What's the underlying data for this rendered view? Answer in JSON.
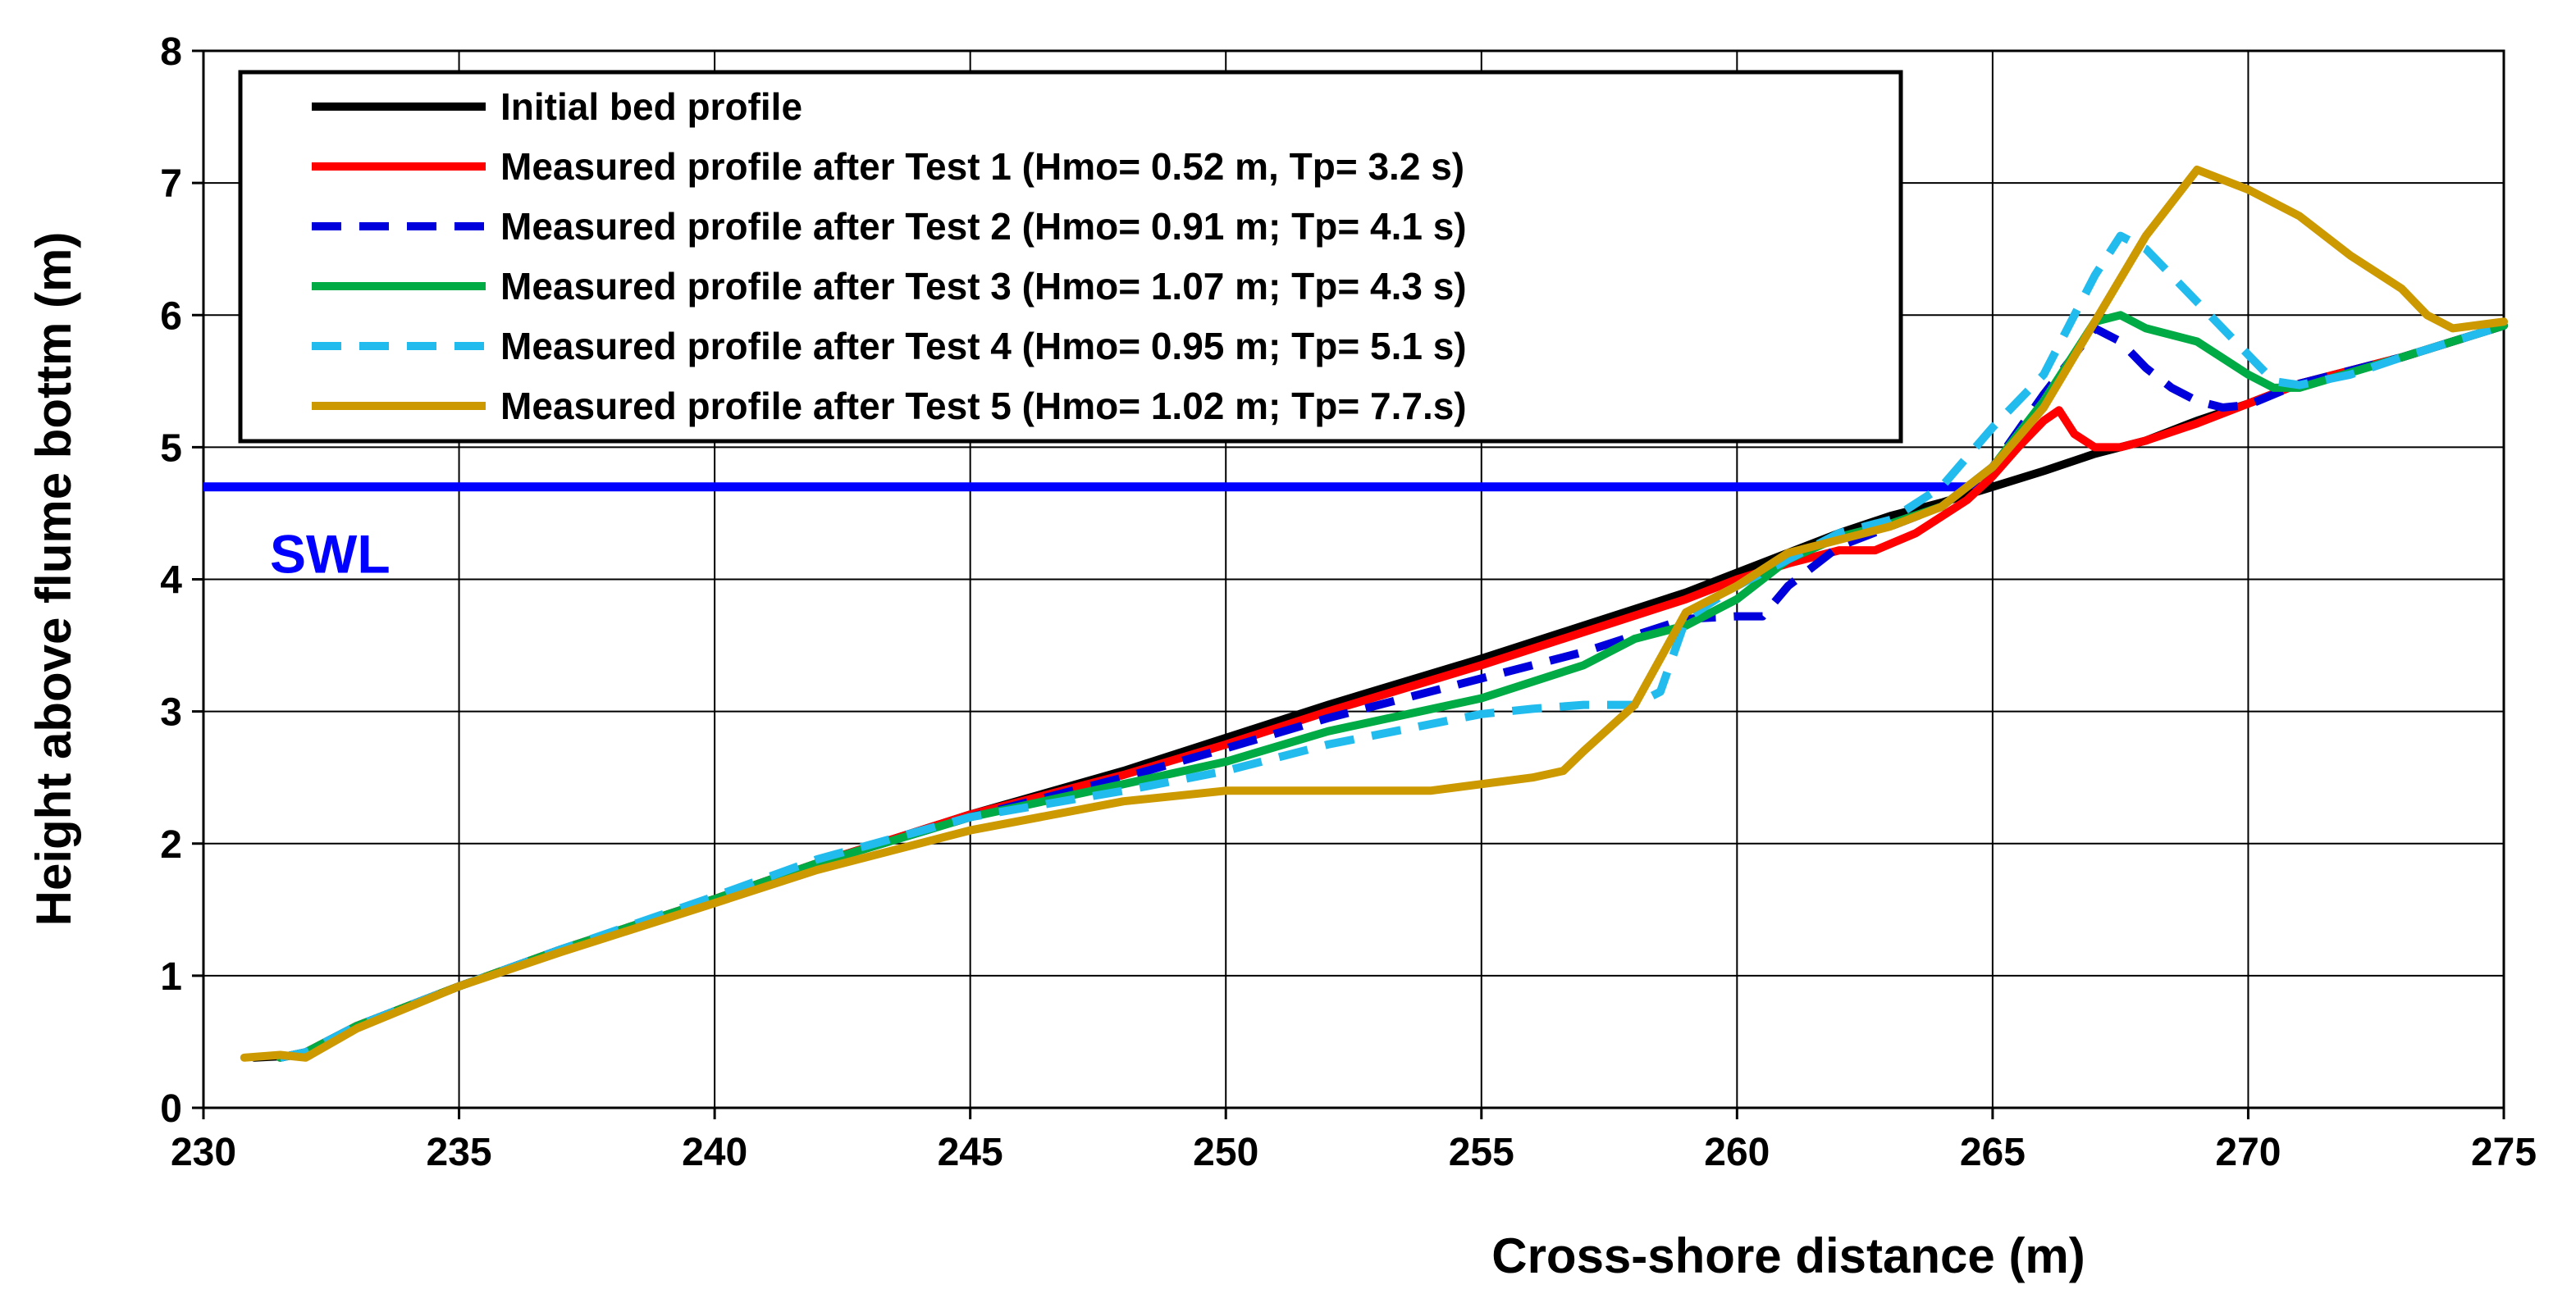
{
  "chart_data": {
    "type": "line",
    "xlabel": "Cross-shore distance (m)",
    "ylabel": "Height above flume bottm (m)",
    "xlim": [
      230,
      275
    ],
    "ylim": [
      0,
      8
    ],
    "xticks": [
      "230",
      "235",
      "240",
      "245",
      "250",
      "255",
      "260",
      "265",
      "270",
      "275"
    ],
    "yticks": [
      "0",
      "1",
      "2",
      "3",
      "4",
      "5",
      "6",
      "7",
      "8"
    ],
    "grid": true,
    "legend_position": "top-left",
    "swl": {
      "label": "SWL",
      "y": 4.7,
      "color": "#0000ff"
    },
    "series": [
      {
        "name": "Initial bed profile",
        "color": "#000000",
        "dash": false,
        "x": [
          231,
          232,
          233,
          235,
          237,
          240,
          242,
          245,
          248,
          250,
          252,
          255,
          257,
          259,
          260,
          261,
          262,
          263,
          264,
          265,
          266,
          267,
          268,
          269,
          270,
          271,
          273,
          275
        ],
        "y": [
          0.38,
          0.4,
          0.62,
          0.92,
          1.2,
          1.58,
          1.85,
          2.22,
          2.55,
          2.8,
          3.05,
          3.4,
          3.65,
          3.9,
          4.05,
          4.2,
          4.35,
          4.48,
          4.58,
          4.7,
          4.82,
          4.95,
          5.05,
          5.2,
          5.33,
          5.48,
          5.68,
          5.92
        ]
      },
      {
        "name": "Measured profile after Test 1 (Hmo= 0.52 m, Tp= 3.2 s)",
        "color": "#ff0000",
        "dash": false,
        "x": [
          231.5,
          232,
          233,
          235,
          237,
          240,
          242,
          245,
          248,
          250,
          252,
          255,
          257,
          259,
          260,
          261,
          262,
          262.7,
          263.5,
          264.5,
          265,
          265.5,
          266,
          266.3,
          266.6,
          267,
          267.5,
          268,
          269,
          270,
          271,
          273,
          275
        ],
        "y": [
          0.38,
          0.42,
          0.62,
          0.92,
          1.2,
          1.58,
          1.85,
          2.22,
          2.52,
          2.75,
          3.0,
          3.35,
          3.6,
          3.85,
          4.0,
          4.12,
          4.22,
          4.22,
          4.35,
          4.6,
          4.78,
          5.0,
          5.2,
          5.28,
          5.1,
          5.0,
          5.0,
          5.05,
          5.18,
          5.33,
          5.48,
          5.68,
          5.92
        ]
      },
      {
        "name": "Measured profile after Test 2 (Hmo= 0.91 m; Tp= 4.1 s)",
        "color": "#0000dd",
        "dash": true,
        "x": [
          231.5,
          232,
          233,
          235,
          237,
          240,
          242,
          245,
          248,
          250,
          252,
          255,
          257,
          259,
          260,
          260.5,
          261,
          262,
          263,
          264,
          265,
          266,
          267,
          267.5,
          268,
          268.5,
          269,
          269.5,
          270,
          271,
          273,
          275
        ],
        "y": [
          0.38,
          0.42,
          0.62,
          0.92,
          1.2,
          1.58,
          1.85,
          2.2,
          2.5,
          2.72,
          2.95,
          3.25,
          3.45,
          3.7,
          3.72,
          3.72,
          3.95,
          4.25,
          4.4,
          4.55,
          4.85,
          5.4,
          5.9,
          5.8,
          5.6,
          5.45,
          5.35,
          5.3,
          5.32,
          5.48,
          5.68,
          5.92
        ]
      },
      {
        "name": "Measured profile after Test 3 (Hmo= 1.07 m; Tp= 4.3 s)",
        "color": "#00aa44",
        "dash": false,
        "x": [
          231.5,
          232,
          233,
          235,
          237,
          240,
          242,
          245,
          248,
          250,
          252,
          255,
          257,
          258,
          259,
          260,
          261,
          262,
          263,
          264,
          265,
          266,
          267,
          267.5,
          268,
          269,
          270,
          270.5,
          271,
          273,
          275
        ],
        "y": [
          0.38,
          0.42,
          0.62,
          0.92,
          1.2,
          1.58,
          1.85,
          2.2,
          2.45,
          2.62,
          2.85,
          3.1,
          3.35,
          3.55,
          3.65,
          3.85,
          4.15,
          4.32,
          4.42,
          4.55,
          4.85,
          5.35,
          5.95,
          6.0,
          5.9,
          5.8,
          5.55,
          5.45,
          5.45,
          5.68,
          5.92
        ]
      },
      {
        "name": "Measured profile after Test 4 (Hmo= 0.95 m; Tp= 5.1 s)",
        "color": "#22bbee",
        "dash": true,
        "x": [
          231.5,
          232,
          233,
          235,
          237,
          240,
          242,
          245,
          248,
          250,
          252,
          255,
          256,
          257,
          258,
          258.5,
          259,
          260,
          261,
          262,
          263,
          264,
          265,
          266,
          267,
          267.5,
          268,
          269,
          270,
          270.5,
          271,
          272,
          273,
          275
        ],
        "y": [
          0.38,
          0.42,
          0.62,
          0.92,
          1.2,
          1.6,
          1.88,
          2.2,
          2.4,
          2.55,
          2.75,
          2.98,
          3.02,
          3.05,
          3.05,
          3.15,
          3.7,
          3.95,
          4.15,
          4.35,
          4.45,
          4.7,
          5.15,
          5.55,
          6.3,
          6.6,
          6.5,
          6.1,
          5.7,
          5.5,
          5.47,
          5.55,
          5.68,
          5.92
        ]
      },
      {
        "name": "Measured profile after Test 5 (Hmo= 1.02 m; Tp= 7.7.s)",
        "color": "#cc9900",
        "dash": false,
        "x": [
          230.8,
          231.5,
          232,
          233,
          235,
          237,
          240,
          242,
          245,
          248,
          250,
          252,
          254,
          256,
          256.6,
          257,
          258,
          259,
          260,
          261,
          262,
          263,
          264,
          265,
          266,
          267,
          268,
          269,
          270,
          271,
          272,
          273,
          273.5,
          274,
          275
        ],
        "y": [
          0.38,
          0.4,
          0.38,
          0.6,
          0.92,
          1.18,
          1.55,
          1.8,
          2.1,
          2.32,
          2.4,
          2.4,
          2.4,
          2.5,
          2.55,
          2.7,
          3.05,
          3.75,
          3.95,
          4.2,
          4.3,
          4.4,
          4.55,
          4.85,
          5.3,
          5.95,
          6.6,
          7.1,
          6.95,
          6.75,
          6.45,
          6.2,
          6.0,
          5.9,
          5.95
        ]
      }
    ]
  }
}
